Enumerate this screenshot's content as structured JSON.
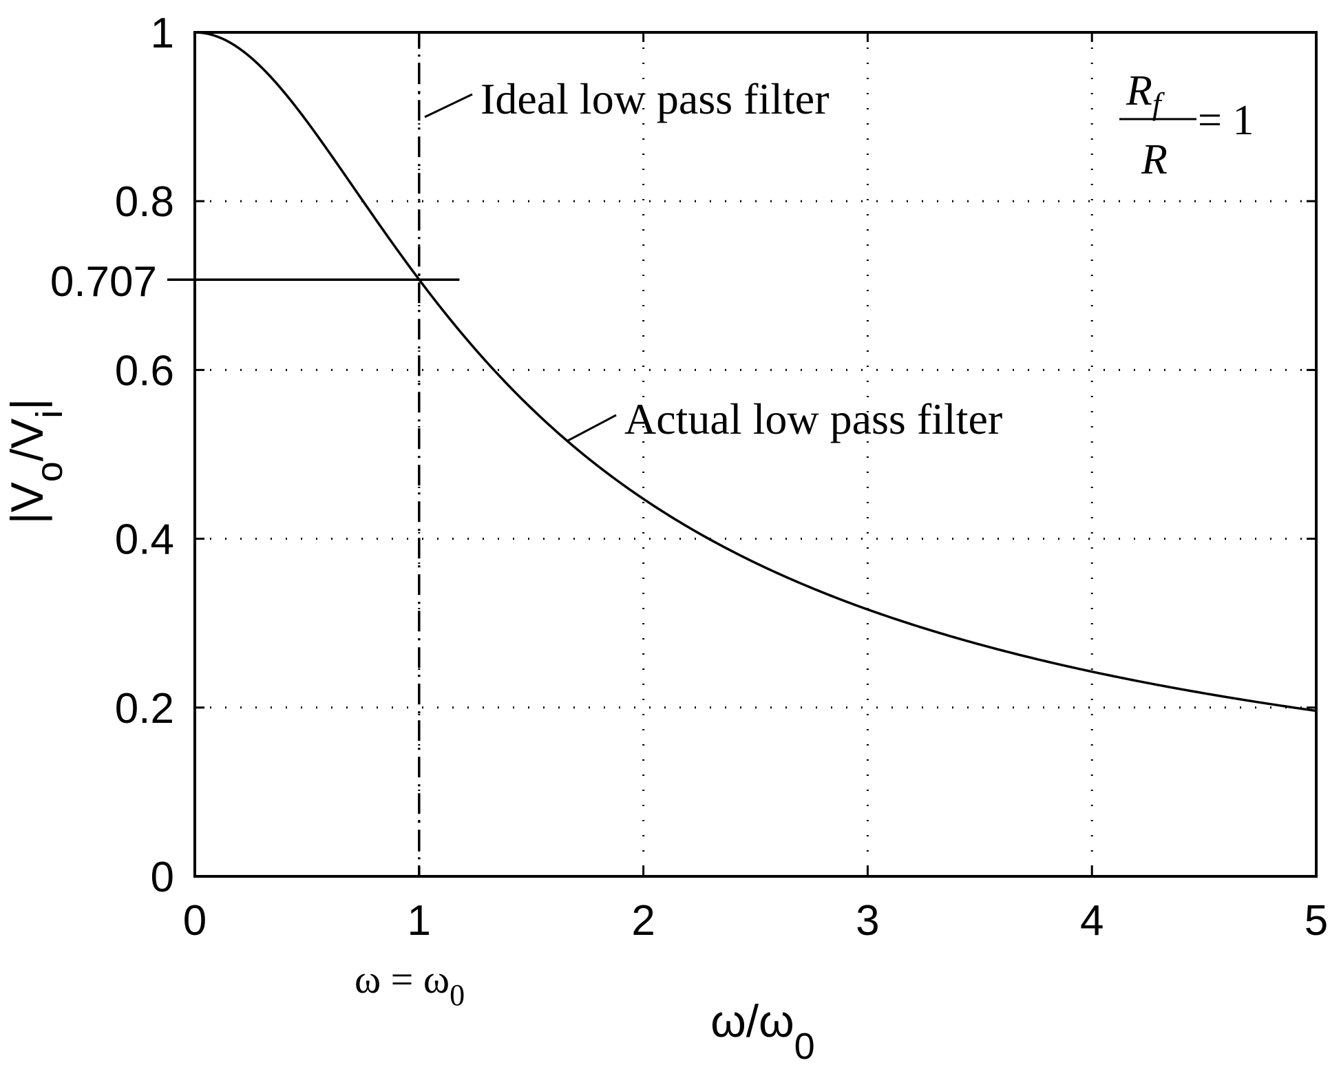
{
  "chart_data": {
    "type": "line",
    "xlabel": "ω/ω0",
    "xlabel_main": "ω/ω",
    "xlabel_sub": "0",
    "ylabel": "|Vo/Vi|",
    "ylabel_parts": [
      "|V",
      "o",
      "/V",
      "i",
      "|"
    ],
    "xlim": [
      0,
      5
    ],
    "ylim": [
      0,
      1
    ],
    "x_ticks": [
      0,
      1,
      2,
      3,
      4,
      5
    ],
    "x_tick_labels": [
      "0",
      "1",
      "2",
      "3",
      "4",
      "5"
    ],
    "y_ticks": [
      0,
      0.2,
      0.4,
      0.6,
      0.8,
      1
    ],
    "y_tick_labels": [
      "0",
      "0.2",
      "0.4",
      "0.6",
      "0.8",
      "1"
    ],
    "grid": true,
    "series": [
      {
        "name": "Actual low pass filter",
        "style": "solid",
        "x": [
          0,
          0.25,
          0.5,
          0.75,
          1,
          1.25,
          1.5,
          1.75,
          2,
          2.5,
          3,
          3.5,
          4,
          4.5,
          5
        ],
        "y": [
          1.0,
          0.97,
          0.894,
          0.8,
          0.707,
          0.625,
          0.555,
          0.496,
          0.447,
          0.371,
          0.316,
          0.275,
          0.243,
          0.217,
          0.196
        ]
      },
      {
        "name": "Ideal low pass filter",
        "style": "dash-dot",
        "x": [
          0,
          1,
          1
        ],
        "y": [
          1,
          1,
          0
        ]
      }
    ],
    "annotations": {
      "ideal_label": "Ideal low pass filter",
      "actual_label": "Actual low pass filter",
      "cutoff_level_label": "0.707",
      "cutoff_level_value": 0.707,
      "cutoff_x_value": 1,
      "cutoff_freq_main": "ω = ω",
      "cutoff_freq_sub": "0",
      "ratio_numerator": "R",
      "ratio_numerator_sub": "f",
      "ratio_denominator": "R",
      "ratio_equals": "= 1"
    }
  }
}
